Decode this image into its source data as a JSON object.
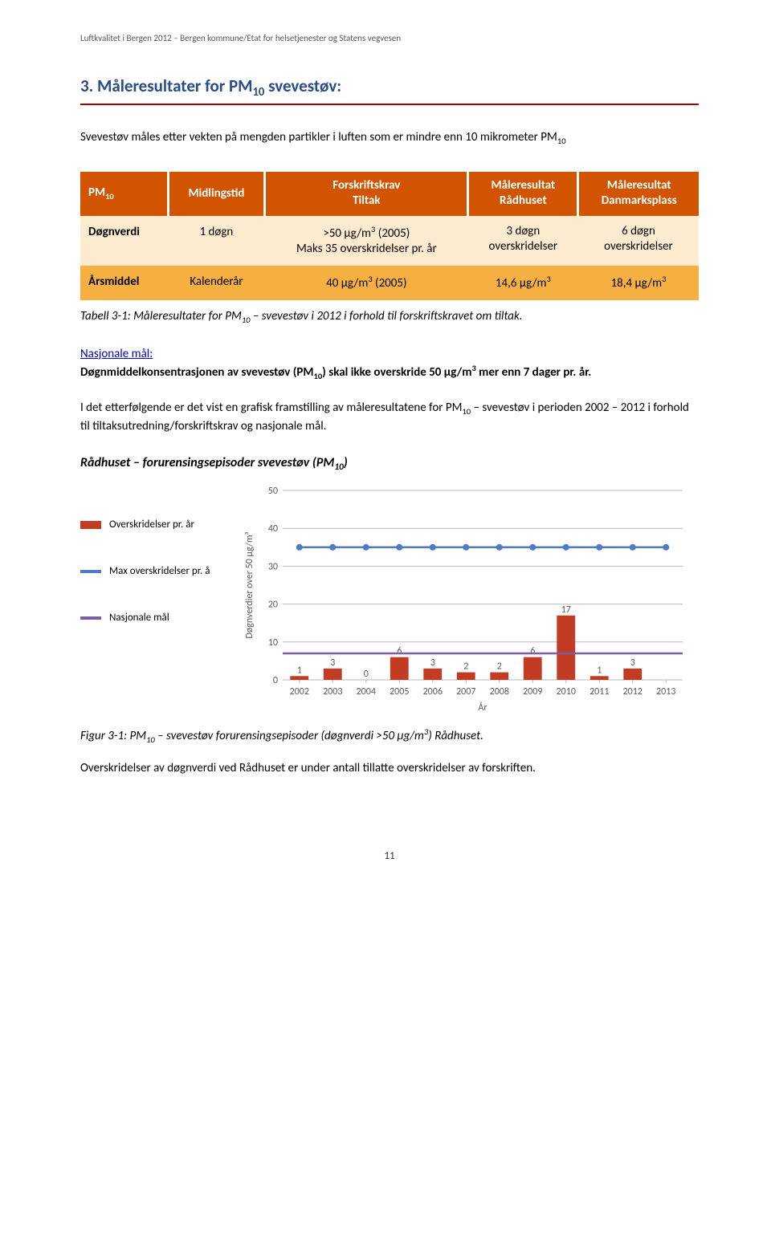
{
  "header_small": "Luftkvalitet i Bergen 2012 – Bergen kommune/Etat for helsetjenester og Statens vegvesen",
  "section_title": "3. Måleresultater for PM₁₀ svevestøv:",
  "intro": "Svevestøv måles etter vekten på mengden partikler i luften som er mindre enn 10 mikrometer PM₁₀",
  "table": {
    "headers": [
      "PM₁₀",
      "Midlingstid",
      "Forskriftskrav\nTiltak",
      "Måleresultat\nRådhuset",
      "Måleresultat\nDanmarksplass"
    ],
    "rows": [
      [
        "Døgnverdi",
        "1 døgn",
        ">50 µg/m³ (2005)\nMaks 35 overskridelser pr. år",
        "3 døgn\noverskridelser",
        "6 døgn\noverskridelser"
      ],
      [
        "Årsmiddel",
        "Kalenderår",
        "40 µg/m³ (2005)",
        "14,6 µg/m³",
        "18,4 µg/m³"
      ]
    ]
  },
  "table_caption": "Tabell 3-1: Måleresultater for PM₁₀ – svevestøv i 2012 i forhold til forskriftskravet om tiltak.",
  "nasj_label": "Nasjonale mål:",
  "nasj_text": "Døgnmiddelkonsentrasjonen av svevestøv (PM₁₀) skal ikke overskride 50 µg/m³ mer enn 7 dager pr. år.",
  "after_para": "I det etterfølgende er det vist en grafisk framstilling av måleresultatene for PM₁₀ – svevestøv i perioden 2002 – 2012 i forhold til tiltaksutredning/forskriftskrav og nasjonale mål.",
  "chart_section_title": "Rådhuset – forurensingsepisoder svevestøv (PM₁₀)",
  "chart": {
    "legend": [
      {
        "label": "Overskridelser pr. år",
        "color": "#c23b22"
      },
      {
        "label": "Max overskridelser pr. å",
        "color": "#4e7cc2"
      },
      {
        "label": "Nasjonale mål",
        "color": "#7b5fa0"
      }
    ],
    "y_label": "Døgnverdier over 50 µg/m³",
    "x_label": "År",
    "y_max": 50,
    "y_step": 10,
    "categories": [
      "2002",
      "2003",
      "2004",
      "2005",
      "2006",
      "2007",
      "2008",
      "2009",
      "2010",
      "2011",
      "2012",
      "2013"
    ],
    "bar_values": [
      1,
      3,
      0,
      6,
      3,
      2,
      2,
      6,
      17,
      1,
      3,
      null
    ],
    "bar_color": "#c23b22",
    "max_line_value": 35,
    "max_line_color": "#4e7cc2",
    "nasj_line_value": 7,
    "nasj_line_color": "#7b5fa0",
    "bg_color": "#ffffff",
    "grid_color": "#b8b8b8",
    "text_color": "#595959",
    "font_size": 12
  },
  "figure_caption": "Figur 3-1: PM₁₀ – svevestøv forurensingsepisoder (døgnverdi >50 µg/m³) Rådhuset.",
  "closing": "Overskridelser av døgnverdi ved Rådhuset er under antall tillatte overskridelser av forskriften.",
  "page_number": "11"
}
